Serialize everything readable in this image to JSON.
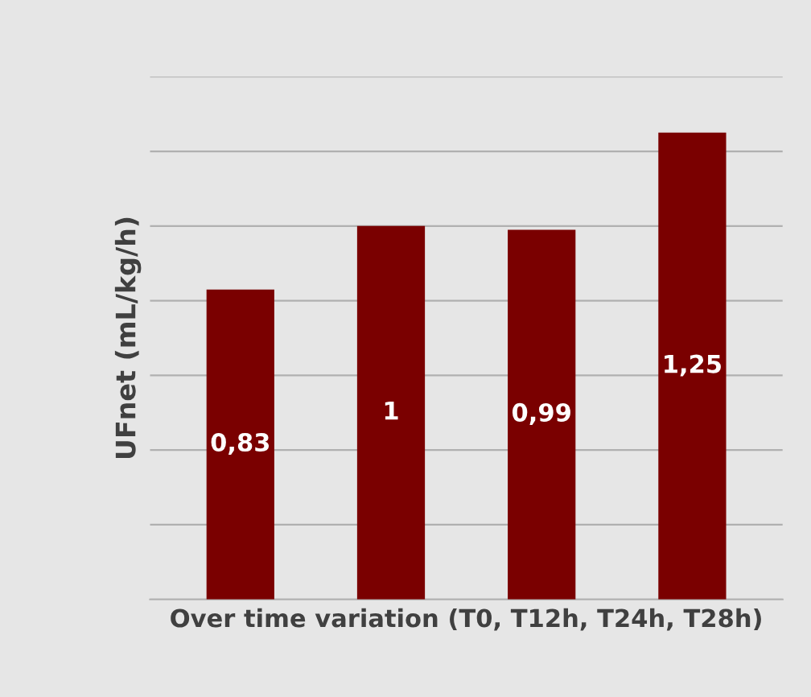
{
  "chart_data": {
    "type": "bar",
    "xlabel": "Over time variation (T0, T12h, T24h, T28h)",
    "ylabel": "UFnet (mL/kg/h)",
    "categories": [
      null,
      null,
      null,
      null
    ],
    "values": [
      0.83,
      1,
      0.99,
      1.25
    ],
    "value_labels": [
      "0,83",
      "1",
      "0,99",
      "1,25"
    ],
    "color": "#7a0000",
    "ylim": [
      0,
      1.4
    ],
    "yticks": [
      {
        "value": 0,
        "label": null
      },
      {
        "value": 0.2,
        "label": null
      },
      {
        "value": 0.4,
        "label": null
      },
      {
        "value": 0.6,
        "label": null
      },
      {
        "value": 0.8,
        "label": null
      },
      {
        "value": 1.0,
        "label": null
      },
      {
        "value": 1.2,
        "label": null
      },
      {
        "value": 1.4,
        "label": null
      }
    ],
    "tick_labels": false,
    "grid": "y",
    "legend": false
  }
}
